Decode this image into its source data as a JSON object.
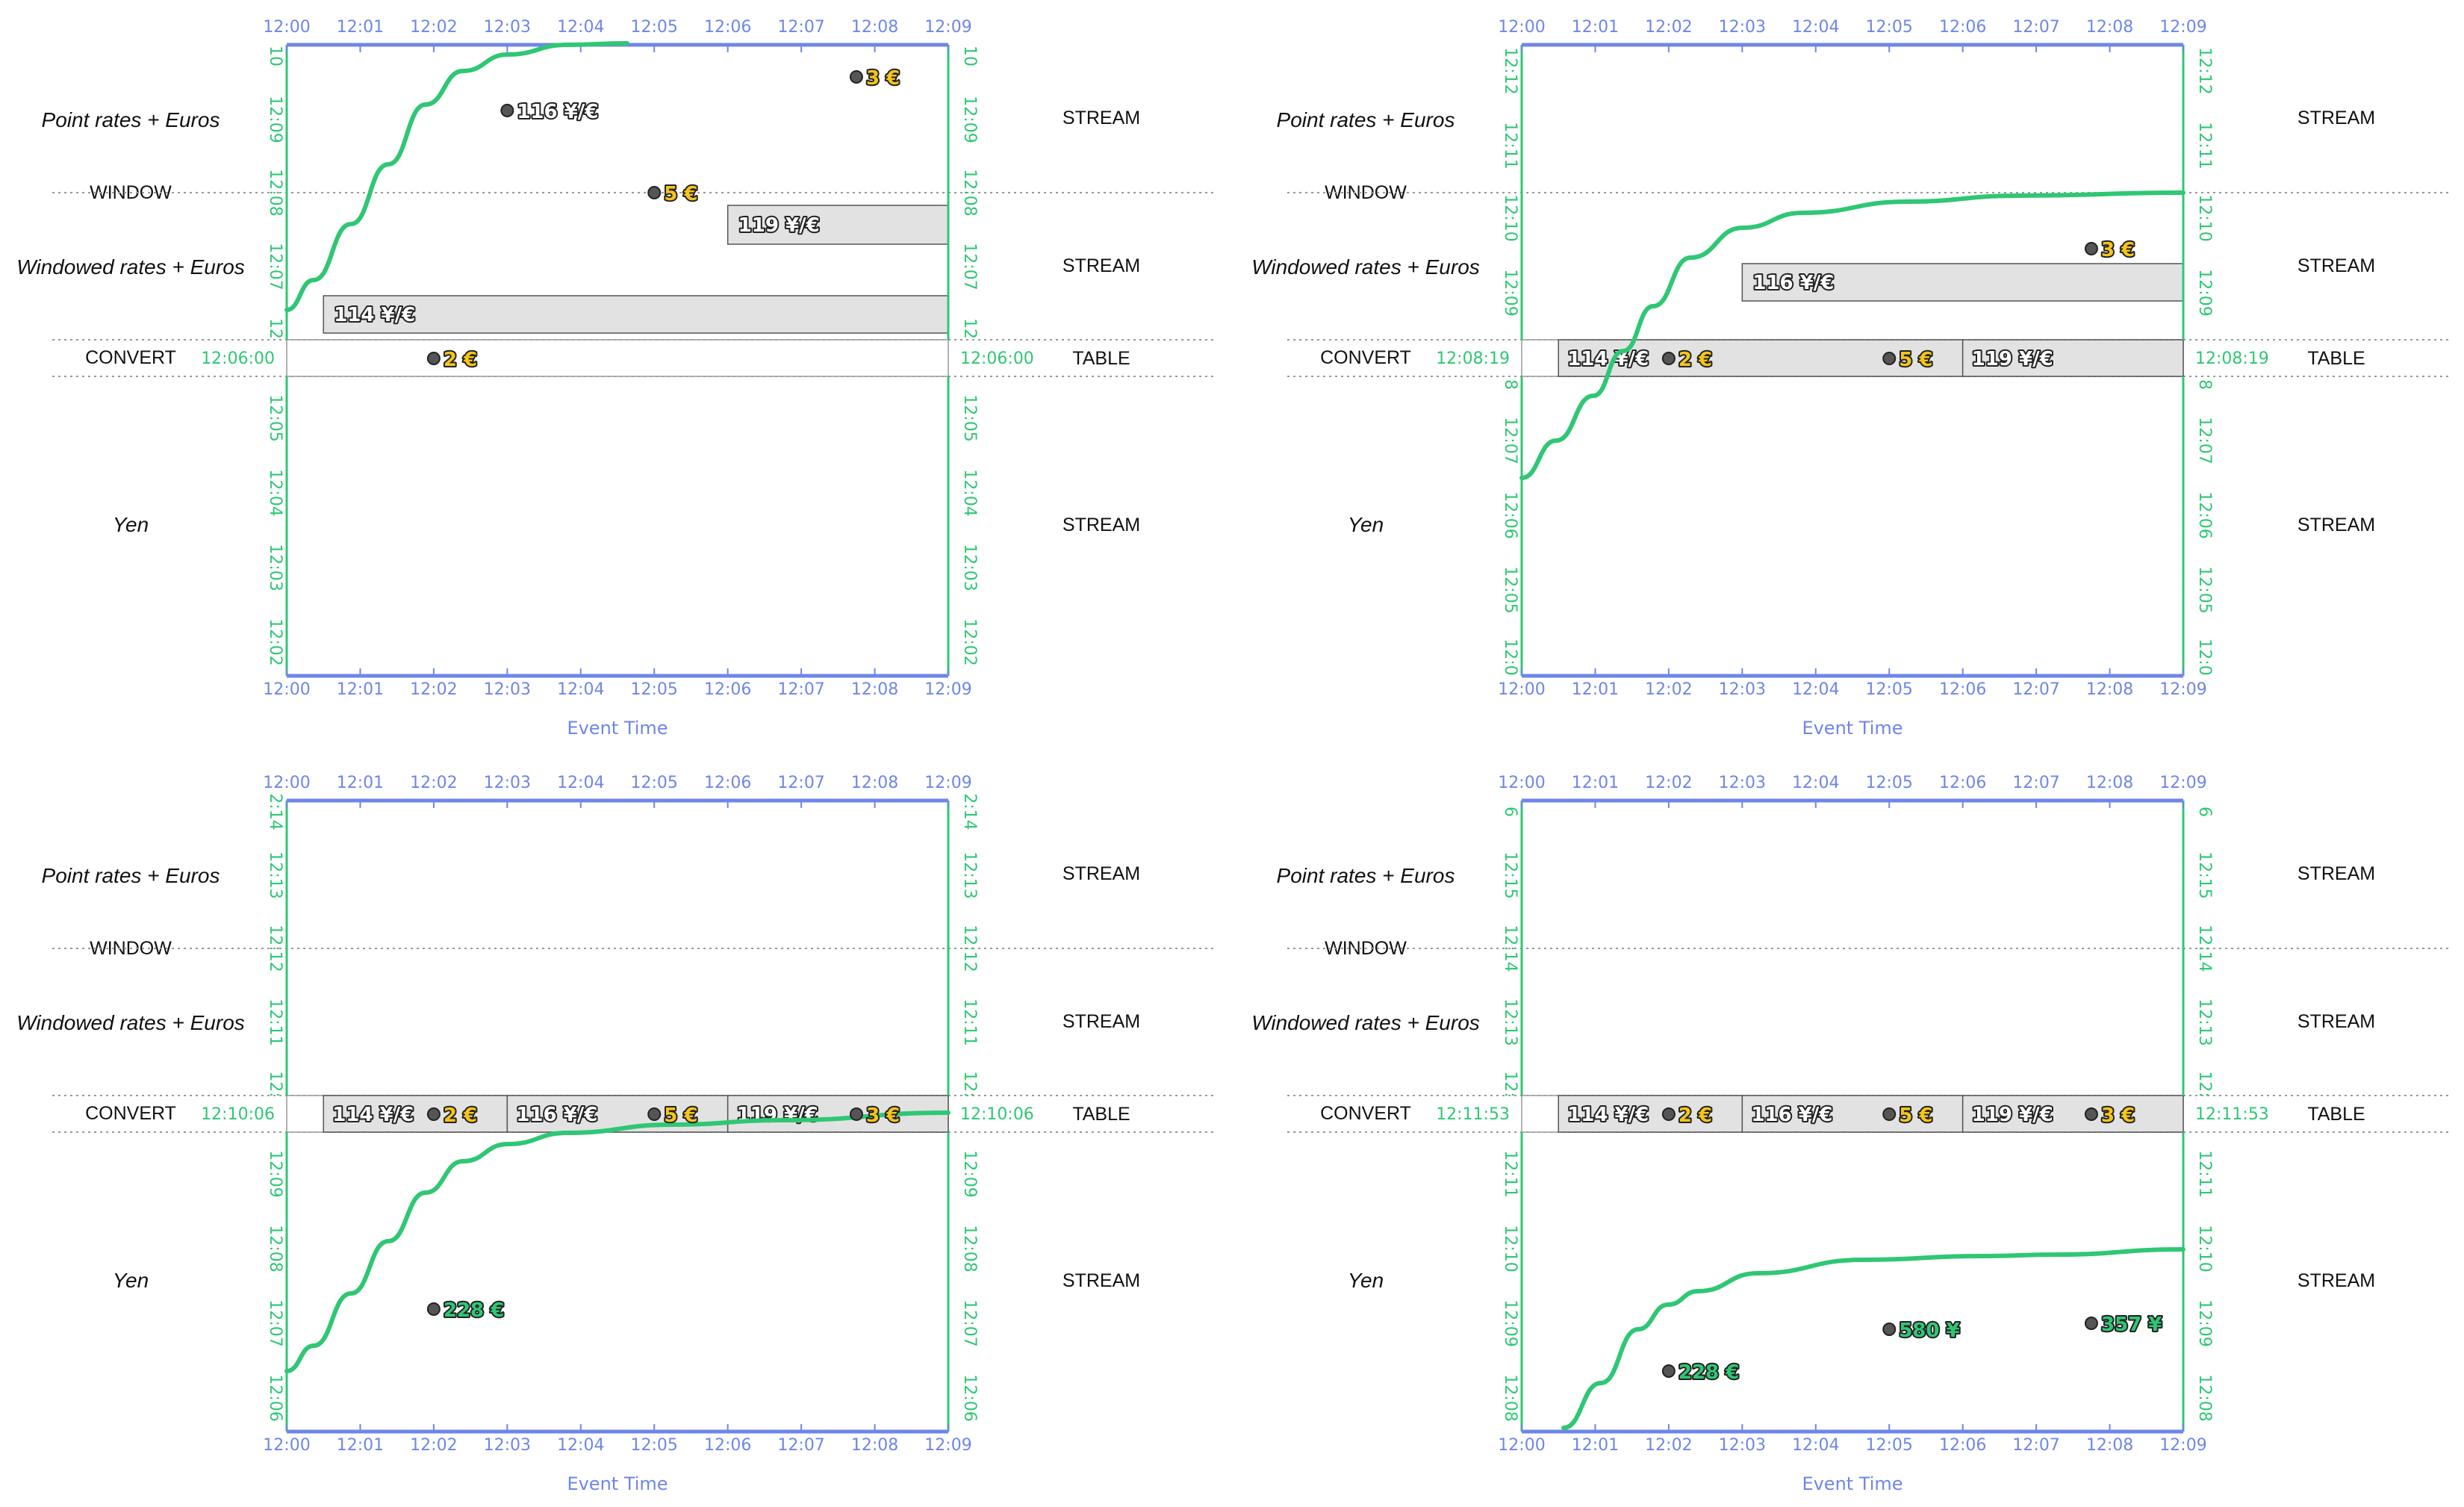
{
  "labels": {
    "point_rates": "Point rates + Euros",
    "window": "WINDOW",
    "windowed_rates": "Windowed rates + Euros",
    "convert": "CONVERT",
    "yen": "Yen",
    "stream": "STREAM",
    "table": "TABLE",
    "event_time": "Event Time"
  },
  "time_ticks": [
    "12:00",
    "12:01",
    "12:02",
    "12:03",
    "12:04",
    "12:05",
    "12:06",
    "12:07",
    "12:08",
    "12:09"
  ],
  "panels": [
    {
      "watermark": "12:06:00",
      "top_ticks": [
        "10",
        "12:09",
        "12:08",
        "12:07",
        "12"
      ],
      "bottom_ticks": [
        "12:05",
        "12:04",
        "12:03",
        "12:02"
      ],
      "point_tags": [
        {
          "t": 3.0,
          "text": "116 ¥/€",
          "kind": "rate",
          "pt": 0
        },
        {
          "t": 7.75,
          "text": "3 €",
          "kind": "euro",
          "pt": 0
        },
        {
          "t": 5.0,
          "text": "5 €",
          "kind": "euro",
          "pt": 1
        }
      ],
      "window_bars": [
        {
          "start": 6.0,
          "end": 9.0,
          "text": "119 ¥/€",
          "row": 0
        },
        {
          "start": 0.5,
          "end": 9.0,
          "text": "114 ¥/€",
          "row": 1
        }
      ],
      "table_cells": [],
      "table_tags": [
        {
          "t": 2.0,
          "text": "2 €",
          "kind": "euro"
        }
      ],
      "yen_tags": []
    },
    {
      "watermark": "12:08:19",
      "top_ticks": [
        "12:12",
        "12:11",
        "12:10",
        "12:09"
      ],
      "bottom_ticks": [
        "8",
        "12:07",
        "12:06",
        "12:05",
        "12:0"
      ],
      "point_tags": [],
      "window_bars": [
        {
          "start": 3.0,
          "end": 9.0,
          "text": "116 ¥/€",
          "row": 1
        }
      ],
      "window_tags": [
        {
          "t": 7.75,
          "text": "3 €",
          "kind": "euro"
        }
      ],
      "table_cells": [
        {
          "start": 0.5,
          "end": 6.0,
          "text": "114 ¥/€"
        },
        {
          "start": 6.0,
          "end": 9.0,
          "text": "119 ¥/€"
        }
      ],
      "table_tags": [
        {
          "t": 2.0,
          "text": "2 €",
          "kind": "euro"
        },
        {
          "t": 5.0,
          "text": "5 €",
          "kind": "euro"
        }
      ],
      "yen_tags": []
    },
    {
      "watermark": "12:10:06",
      "top_ticks": [
        "2:14",
        "12:13",
        "12:12",
        "12:11",
        "12:"
      ],
      "bottom_ticks": [
        "12:09",
        "12:08",
        "12:07",
        "12:06"
      ],
      "point_tags": [],
      "window_bars": [],
      "table_cells": [
        {
          "start": 0.5,
          "end": 3.0,
          "text": "114 ¥/€"
        },
        {
          "start": 3.0,
          "end": 6.0,
          "text": "116 ¥/€"
        },
        {
          "start": 6.0,
          "end": 9.0,
          "text": "119 ¥/€"
        }
      ],
      "table_tags": [
        {
          "t": 2.0,
          "text": "2 €",
          "kind": "euro"
        },
        {
          "t": 5.0,
          "text": "5 €",
          "kind": "euro"
        },
        {
          "t": 7.75,
          "text": "3 €",
          "kind": "euro"
        }
      ],
      "yen_tags": [
        {
          "t": 2.0,
          "text": "228 €",
          "kind": "yen",
          "lvl": 0
        }
      ]
    },
    {
      "watermark": "12:11:53",
      "top_ticks": [
        "6",
        "12:15",
        "12:14",
        "12:13",
        "12:"
      ],
      "bottom_ticks": [
        "12:11",
        "12:10",
        "12:09",
        "12:08"
      ],
      "point_tags": [],
      "window_bars": [],
      "table_cells": [
        {
          "start": 0.5,
          "end": 3.0,
          "text": "114 ¥/€"
        },
        {
          "start": 3.0,
          "end": 6.0,
          "text": "116 ¥/€"
        },
        {
          "start": 6.0,
          "end": 9.0,
          "text": "119 ¥/€"
        }
      ],
      "table_tags": [
        {
          "t": 2.0,
          "text": "2 €",
          "kind": "euro"
        },
        {
          "t": 5.0,
          "text": "5 €",
          "kind": "euro"
        },
        {
          "t": 7.75,
          "text": "3 €",
          "kind": "euro"
        }
      ],
      "yen_tags": [
        {
          "t": 2.0,
          "text": "228 €",
          "kind": "yen",
          "lvl": 0
        },
        {
          "t": 5.0,
          "text": "580 ¥",
          "kind": "yen",
          "lvl": 1
        },
        {
          "t": 7.75,
          "text": "357 ¥",
          "kind": "yen",
          "lvl": 2
        }
      ]
    }
  ],
  "colors": {
    "time_axis": "#6f86e8",
    "watermark": "#2fc774",
    "euro": "#f5c518",
    "box_fill": "#e2e2e2"
  }
}
